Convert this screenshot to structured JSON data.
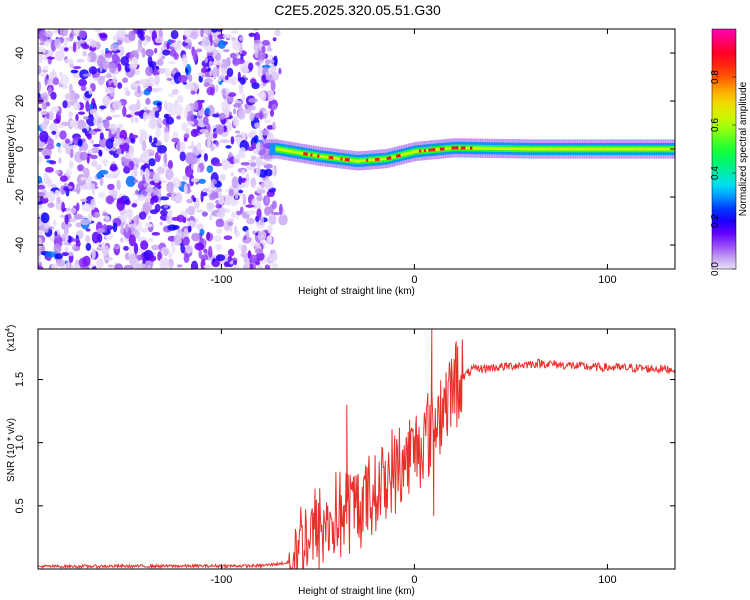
{
  "title": "C2E5.2025.320.05.51.G30",
  "chart_data": [
    {
      "type": "heatmap",
      "xlabel": "Height of straight line (km)",
      "ylabel": "Frequency (Hz)",
      "xlim": [
        -195,
        135
      ],
      "ylim": [
        -50,
        50
      ],
      "x_ticks": [
        -100,
        0,
        100
      ],
      "x_tick_labels": [
        "-100",
        "0",
        "100"
      ],
      "y_ticks": [
        -40,
        -20,
        0,
        20,
        40
      ],
      "y_tick_labels": [
        "-40",
        "-20",
        "0",
        "20",
        "40"
      ],
      "colorbar": {
        "label": "Normalized spectral amplitude",
        "range": [
          0,
          1
        ],
        "ticks": [
          0,
          0.2,
          0.4,
          0.6,
          0.8
        ],
        "tick_labels": [
          "0.0",
          "0.2",
          "0.4",
          "0.6",
          "0.8"
        ]
      },
      "noise_region_x": [
        -195,
        -72
      ],
      "signal_track": [
        {
          "x": -72,
          "freq": 0.0
        },
        {
          "x": -50,
          "freq": -3.0
        },
        {
          "x": -30,
          "freq": -5.0
        },
        {
          "x": -15,
          "freq": -4.0
        },
        {
          "x": 0,
          "freq": -1.0
        },
        {
          "x": 20,
          "freq": 0.5
        },
        {
          "x": 60,
          "freq": 0.0
        },
        {
          "x": 135,
          "freq": 0.0
        }
      ],
      "grid": false
    },
    {
      "type": "line",
      "xlabel": "Height of straight line (km)",
      "ylabel": "SNR (10 * v/v)",
      "y_multiplier": "(x10",
      "y_multiplier_exp": "4",
      "y_multiplier_close": ")",
      "xlim": [
        -195,
        135
      ],
      "ylim": [
        0,
        19000
      ],
      "x_ticks": [
        -100,
        0,
        100
      ],
      "x_tick_labels": [
        "-100",
        "0",
        "100"
      ],
      "y_ticks": [
        5000,
        10000,
        15000
      ],
      "y_tick_labels": [
        "0.5",
        "1.0",
        "1.5"
      ],
      "color": "#e8302a",
      "series_points": [
        {
          "x": -195,
          "y": 200
        },
        {
          "x": -80,
          "y": 250
        },
        {
          "x": -65,
          "y": 500
        },
        {
          "x": -57,
          "y": 2500
        },
        {
          "x": -45,
          "y": 3500
        },
        {
          "x": -35,
          "y": 4500
        },
        {
          "x": -25,
          "y": 5500
        },
        {
          "x": -15,
          "y": 7000
        },
        {
          "x": -5,
          "y": 8500
        },
        {
          "x": 5,
          "y": 10500
        },
        {
          "x": 12,
          "y": 12000
        },
        {
          "x": 20,
          "y": 14500
        },
        {
          "x": 30,
          "y": 15800
        },
        {
          "x": 45,
          "y": 16000
        },
        {
          "x": 65,
          "y": 16300
        },
        {
          "x": 90,
          "y": 16000
        },
        {
          "x": 115,
          "y": 15900
        },
        {
          "x": 135,
          "y": 15800
        }
      ],
      "spikes": [
        {
          "x": -35,
          "y": 13000
        },
        {
          "x": 9,
          "y": 19000
        },
        {
          "x": 10,
          "y": 4200
        }
      ],
      "grid": false
    }
  ]
}
